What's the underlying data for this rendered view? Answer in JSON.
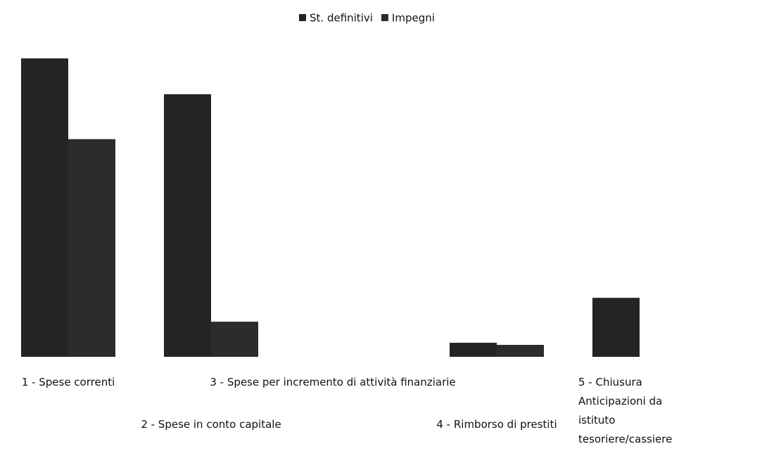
{
  "chart_data": {
    "type": "bar",
    "categories": [
      "1 - Spese correnti",
      "2 - Spese in conto capitale",
      "3 - Spese per incremento di attività finanziarie",
      "4 - Rimborso di prestiti",
      "5 - Chiusura Anticipazioni da istituto tesoriere/cassiere"
    ],
    "series": [
      {
        "name": "St. definitivi",
        "color": "#242424",
        "values": [
          425,
          374,
          0,
          20,
          84
        ]
      },
      {
        "name": "Impegni",
        "color": "#2c2c2c",
        "values": [
          310,
          50,
          0,
          17,
          0
        ]
      }
    ],
    "ylim": [
      0,
      430
    ],
    "legend": "top"
  }
}
